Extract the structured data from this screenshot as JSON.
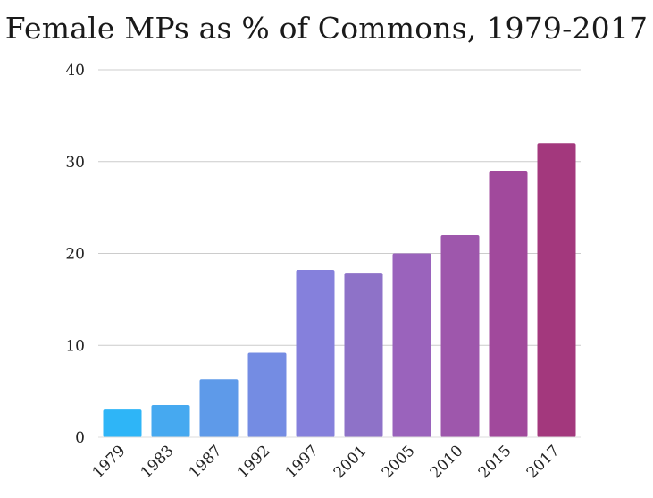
{
  "chart_data": {
    "type": "bar",
    "title": "Female MPs as % of Commons, 1979-2017",
    "xlabel": "",
    "ylabel": "",
    "categories": [
      "1979",
      "1983",
      "1987",
      "1992",
      "1997",
      "2001",
      "2005",
      "2010",
      "2015",
      "2017"
    ],
    "values": [
      3,
      3.5,
      6.3,
      9.2,
      18.2,
      17.9,
      20,
      22,
      29,
      32
    ],
    "ylim": [
      0,
      40
    ],
    "yticks": [
      "0",
      "10",
      "20",
      "30",
      "40"
    ],
    "grid": true,
    "legend": "none",
    "colors": [
      "#2eb5f7",
      "#46a9f0",
      "#5e9ae9",
      "#748ce3",
      "#8580dc",
      "#8e72c8",
      "#9a63bc",
      "#9e57ac",
      "#a1499c",
      "#a3387d"
    ]
  }
}
